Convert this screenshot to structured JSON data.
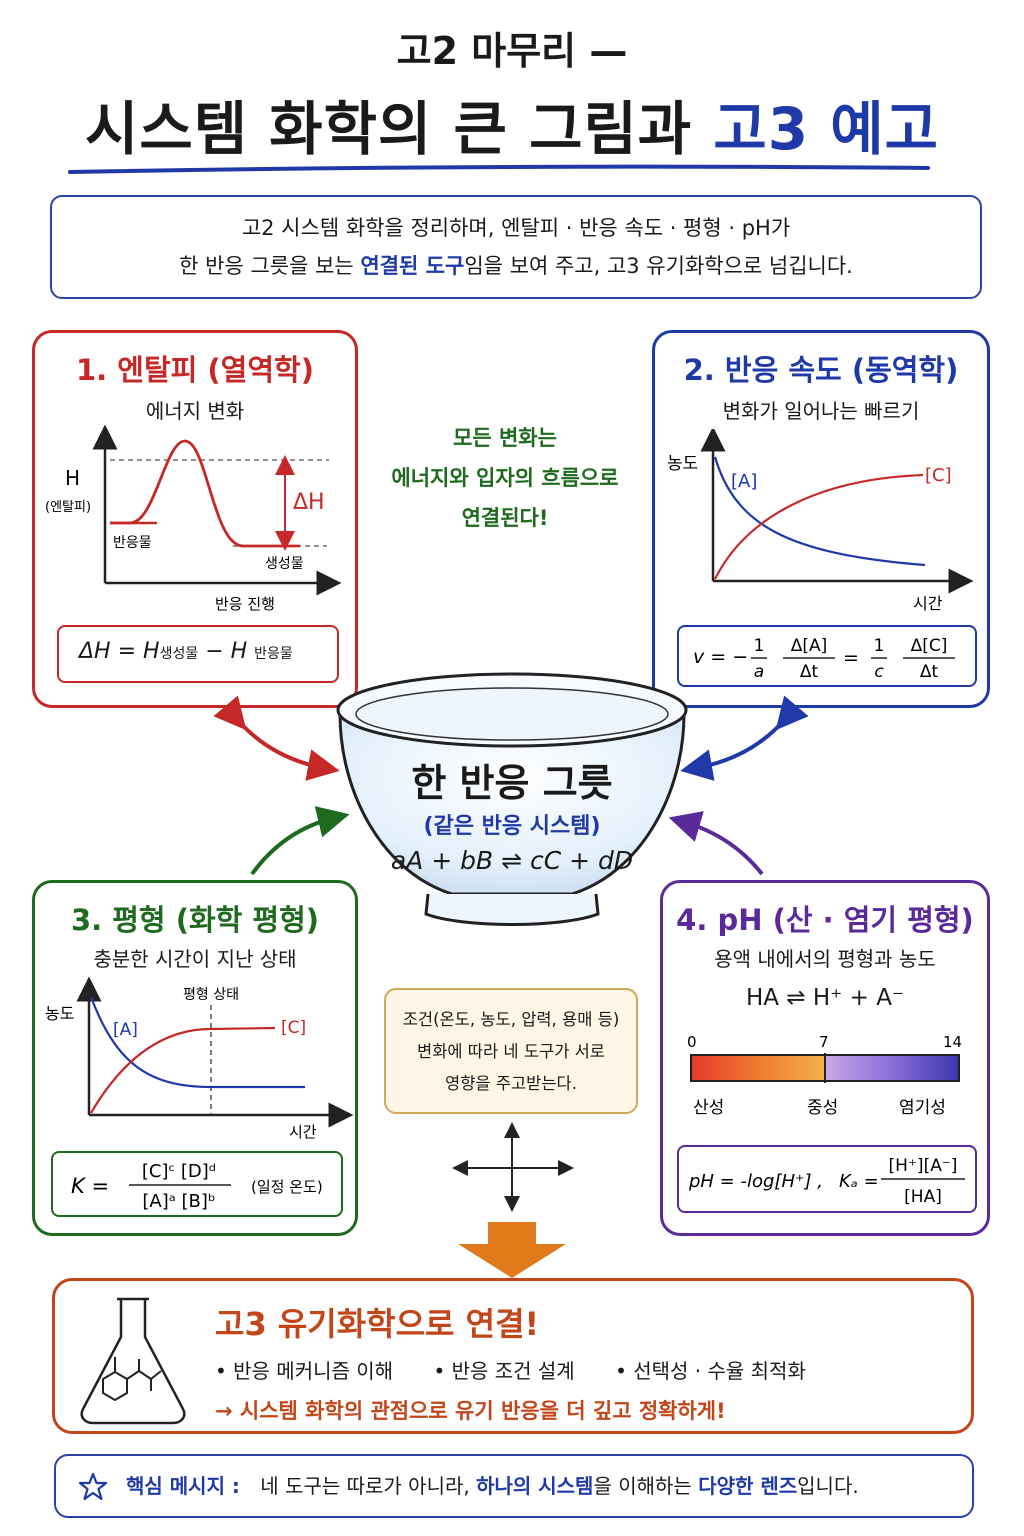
{
  "title": {
    "line1": "고2 마무리 —",
    "line2_main": "시스템 화학의 큰 그림과 ",
    "line2_accent": "고3 예고"
  },
  "intro": {
    "line1": "고2 시스템 화학을 정리하며, 엔탈피 · 반응 속도 · 평형 · pH가",
    "line2_pre": "한 반응 그릇을 보는 ",
    "line2_hl": "연결된 도구",
    "line2_post": "임을 보여 주고, 고3 유기화학으로 넘깁니다."
  },
  "box1": {
    "title": "1. 엔탈피 (열역학)",
    "subtitle": "에너지 변화",
    "y_label": "H",
    "y_sublabel": "(엔탈피)",
    "reactant_label": "반응물",
    "product_label": "생성물",
    "delta_label": "ΔH",
    "x_label": "반응 진행",
    "formula": "ΔH = H생성물 − H반응물",
    "formula_parts": {
      "lhs": "ΔH = H",
      "sub1": "생성물",
      "mid": " − H ",
      "sub2": "반응물"
    }
  },
  "box2": {
    "title": "2. 반응 속도 (동역학)",
    "subtitle": "변화가 일어나는 빠르기",
    "y_label": "농도",
    "x_label": "시간",
    "series_a": "[A]",
    "series_c": "[C]",
    "formula": {
      "v": "v = −",
      "n1": "1",
      "d1": "a",
      "n2": "Δ[A]",
      "d2": "Δt",
      "eq": "=",
      "n3": "1",
      "d3": "c",
      "n4": "Δ[C]",
      "d4": "Δt"
    }
  },
  "center": {
    "message_lines": [
      "모든 변화는",
      "에너지와 입자의 흐름으로",
      "연결된다!"
    ],
    "bowl_title": "한 반응 그릇",
    "bowl_subtitle": "(같은 반응 시스템)",
    "bowl_equation": "aA + bB ⇌ cC + dD"
  },
  "box3": {
    "title": "3. 평형 (화학 평형)",
    "subtitle": "충분한 시간이 지난 상태",
    "eq_state_label": "평형 상태",
    "y_label": "농도",
    "x_label": "시간",
    "series_a": "[A]",
    "series_c": "[C]",
    "formula": {
      "k": "K =",
      "num": "[C]ᶜ [D]ᵈ",
      "den": "[A]ᵃ [B]ᵇ",
      "note": "(일정 온도)"
    }
  },
  "conditions": {
    "lines": [
      "조건(온도, 농도, 압력, 용매 등)",
      "변화에 따라 네 도구가 서로",
      "영향을 주고받는다."
    ]
  },
  "box4": {
    "title": "4. pH (산 · 염기 평형)",
    "subtitle": "용액 내에서의 평형과 농도",
    "equation": "HA ⇌ H⁺ + A⁻",
    "scale_min": "0",
    "scale_mid": "7",
    "scale_max": "14",
    "acid_label": "산성",
    "neutral_label": "중성",
    "base_label": "염기성",
    "formula": {
      "ph": "pH = -log[H⁺] ,",
      "ka": "Kₐ =",
      "num": "[H⁺][A⁻]",
      "den": "[HA]"
    }
  },
  "bottom": {
    "title": "고3 유기화학으로 연결!",
    "bullets": [
      "• 반응 메커니즘 이해",
      "• 반응 조건 설계",
      "• 선택성 · 수율 최적화"
    ],
    "arrow_text": "→ 시스템 화학의 관점으로 유기 반응을 더 깊고 정확하게!"
  },
  "core": {
    "key": "핵심 메시지 :",
    "part1": "네 도구는 따로가 아니라, ",
    "hl1": "하나의 시스템",
    "part2": "을 이해하는 ",
    "hl2": "다양한 렌즈",
    "part3": "입니다."
  },
  "colors": {
    "red": "#c62828",
    "blue": "#1f3aa8",
    "green": "#1e6a1e",
    "purple": "#5a2a9a",
    "orange": "#c2461a",
    "arrow_orange": "#e07a1a"
  }
}
